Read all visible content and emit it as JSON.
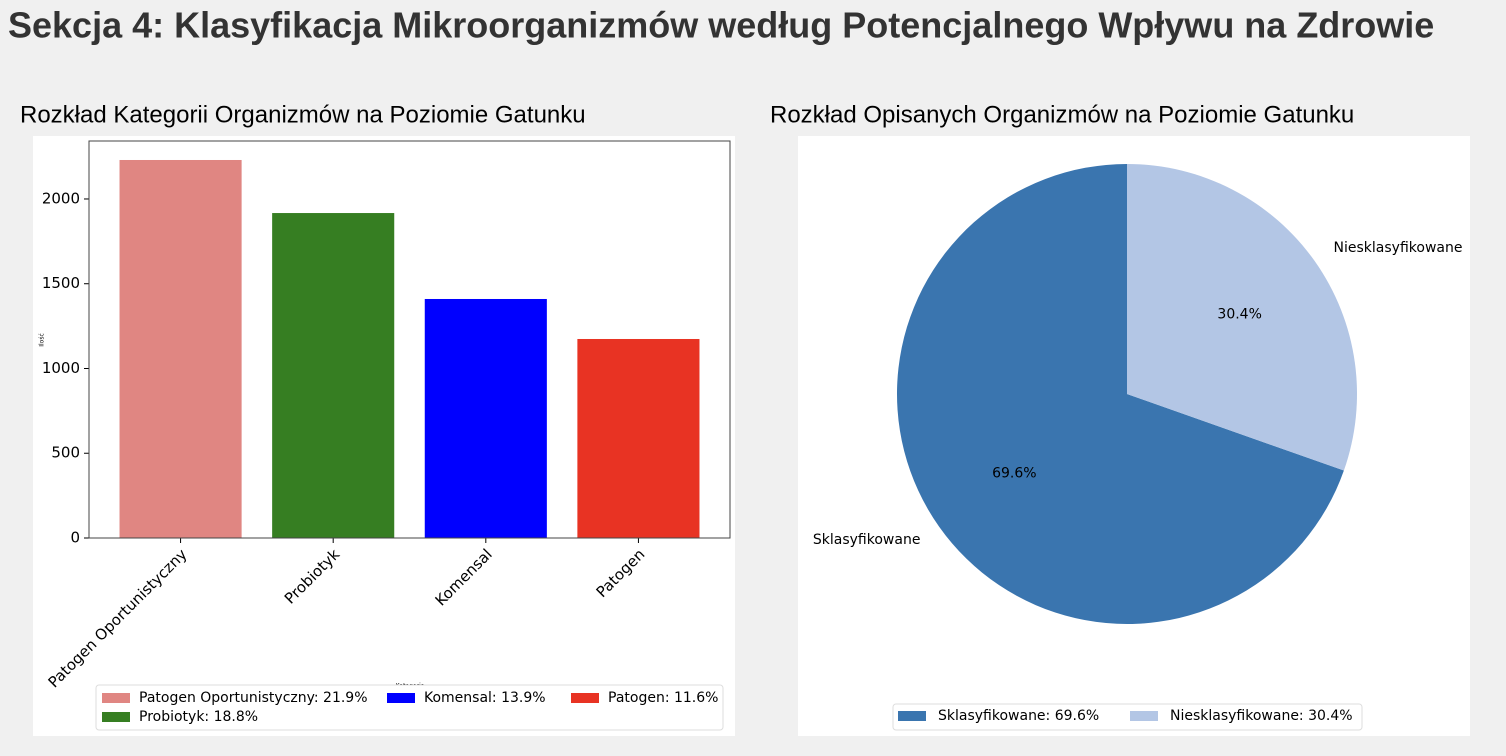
{
  "header": {
    "title": "Sekcja 4: Klasyfikacja Mikroorganizmów według Potencjalnego Wpływu na Zdrowie"
  },
  "chart_data": [
    {
      "type": "bar",
      "title": "Rozkład Kategorii Organizmów na Poziomie Gatunku",
      "x_label": "Kategoria",
      "y_label": "Ilość",
      "categories": [
        "Patogen Oportunistyczny",
        "Probiotyk",
        "Komensal",
        "Patogen"
      ],
      "values": [
        2230,
        1917,
        1410,
        1174
      ],
      "colors": [
        "#e08682",
        "#367e22",
        "#0000ff",
        "#e83323"
      ],
      "legend_labels": [
        "Patogen Oportunistyczny: 21.9%",
        "Probiotyk: 18.8%",
        "Komensal: 13.9%",
        "Patogen: 11.6%"
      ],
      "ylim": [
        0,
        2342
      ],
      "yticks": [
        0,
        500,
        1000,
        1500,
        2000
      ]
    },
    {
      "type": "pie",
      "title": "Rozkład Opisanych Organizmów na Poziomie Gatunku",
      "labels": [
        "Sklasyfikowane",
        "Niesklasyfikowane"
      ],
      "values": [
        69.6,
        30.4
      ],
      "value_labels": [
        "69.6%",
        "30.4%"
      ],
      "colors": [
        "#3a75af",
        "#b3c6e5"
      ],
      "legend_labels": [
        "Sklasyfikowane: 69.6%",
        "Niesklasyfikowane: 30.4%"
      ]
    }
  ]
}
